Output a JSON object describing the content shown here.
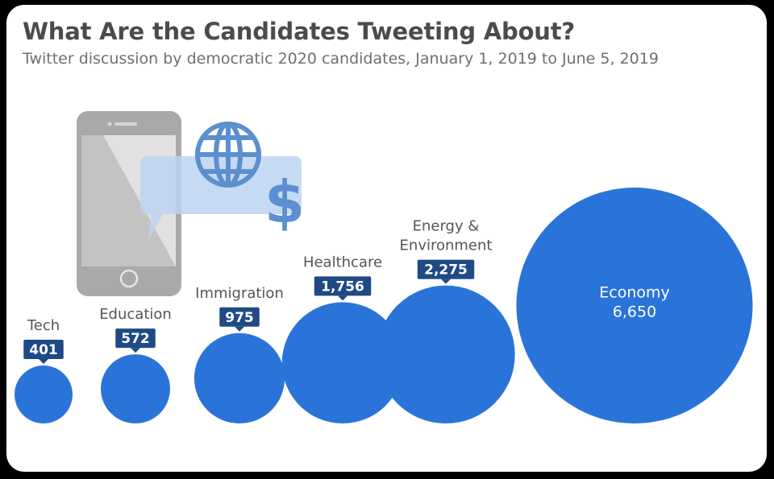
{
  "title": "What Are the Candidates Tweeting About?",
  "subtitle": "Twitter discussion by democratic 2020 candidates, January 1, 2019 to June 5, 2019",
  "colors": {
    "bubble": "#2a74d9",
    "badge": "#1f4a85",
    "phone_frame": "#a9a9a9",
    "bubble_fill": "#bdd4f2",
    "icon": "#5b8fcf"
  },
  "icons": [
    "smartphone-icon",
    "speech-bubble-icon",
    "globe-icon",
    "dollar-icon"
  ],
  "chart_data": {
    "type": "bubble",
    "title": "What Are the Candidates Tweeting About?",
    "subtitle": "Twitter discussion by democratic 2020 candidates, January 1, 2019 to June 5, 2019",
    "categories": [
      {
        "lines": [
          "Tech"
        ],
        "value": 401,
        "display": "401"
      },
      {
        "lines": [
          "Education"
        ],
        "value": 572,
        "display": "572"
      },
      {
        "lines": [
          "Immigration"
        ],
        "value": 975,
        "display": "975"
      },
      {
        "lines": [
          "Healthcare"
        ],
        "value": 1756,
        "display": "1,756"
      },
      {
        "lines": [
          "Energy &",
          "Environment"
        ],
        "value": 2275,
        "display": "2,275"
      },
      {
        "lines": [
          "Economy"
        ],
        "value": 6650,
        "display": "6,650",
        "label_inside": true
      }
    ]
  }
}
